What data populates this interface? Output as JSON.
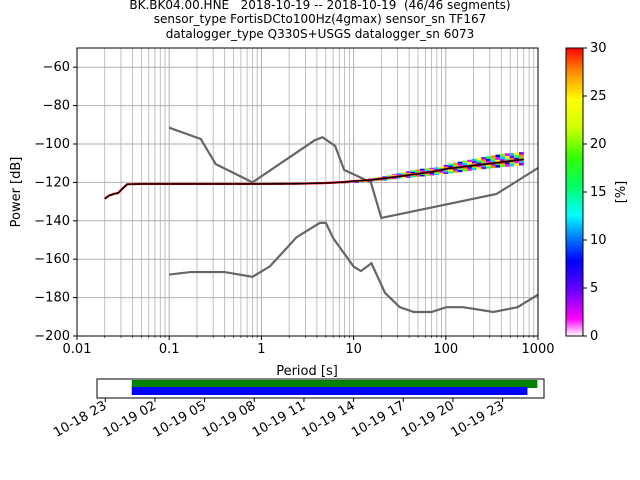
{
  "chart_data": [
    {
      "type": "heatmap",
      "title_lines": [
        "BK.BK04.00.HNE   2018-10-19 -- 2018-10-19  (46/46 segments)",
        "sensor_type FortisDCto100Hz(4gmax) sensor_sn TF167",
        "datalogger_type Q330S+USGS datalogger_sn 6073"
      ],
      "xlabel": "Period [s]",
      "ylabel": "Power [dB]",
      "xscale": "log",
      "xlim": [
        0.01,
        1000
      ],
      "ylim": [
        -200,
        -50
      ],
      "x_ticks": [
        {
          "value": 0.01,
          "label": "0.01"
        },
        {
          "value": 0.1,
          "label": "0.1"
        },
        {
          "value": 1,
          "label": "1"
        },
        {
          "value": 10,
          "label": "10"
        },
        {
          "value": 100,
          "label": "100"
        },
        {
          "value": 1000,
          "label": "1000"
        }
      ],
      "y_ticks": [
        {
          "value": -60,
          "label": "−60"
        },
        {
          "value": -80,
          "label": "−80"
        },
        {
          "value": -100,
          "label": "−100"
        },
        {
          "value": -120,
          "label": "−120"
        },
        {
          "value": -140,
          "label": "−140"
        },
        {
          "value": -160,
          "label": "−160"
        },
        {
          "value": -180,
          "label": "−180"
        },
        {
          "value": -200,
          "label": "−200"
        }
      ],
      "grid": true,
      "noise_model_high": {
        "color": "#666666",
        "x": [
          0.1,
          0.22,
          0.32,
          0.8,
          3.8,
          4.6,
          6.3,
          7.9,
          15.4,
          20,
          354.8,
          1000
        ],
        "y": [
          -91.5,
          -97.4,
          -110.5,
          -120,
          -98,
          -96.5,
          -101,
          -113.5,
          -120,
          -138.5,
          -126,
          -112.5
        ]
      },
      "noise_model_low": {
        "color": "#666666",
        "x": [
          0.1,
          0.17,
          0.4,
          0.8,
          1.24,
          2.4,
          4.3,
          5,
          6,
          10,
          12,
          15.6,
          21.9,
          31.6,
          45,
          70,
          101,
          154,
          328,
          600,
          1000
        ],
        "y": [
          -168,
          -166.7,
          -166.7,
          -169.2,
          -163.7,
          -148.6,
          -141.1,
          -141.1,
          -149,
          -163.8,
          -166.2,
          -162.1,
          -177.5,
          -185,
          -187.5,
          -187.5,
          -185,
          -185,
          -187.5,
          -185,
          -178.5
        ]
      },
      "mode_curve": {
        "color": "#000000",
        "x": [
          0.02,
          0.022,
          0.025,
          0.028,
          0.03,
          0.035,
          0.05,
          0.1,
          0.3,
          1,
          3,
          5,
          8,
          10,
          15,
          20,
          30,
          50,
          80,
          100,
          200,
          400,
          700
        ],
        "y": [
          -128.5,
          -127,
          -126,
          -125.5,
          -124,
          -121,
          -120.8,
          -120.8,
          -120.8,
          -120.8,
          -120.6,
          -120.3,
          -119.8,
          -119.3,
          -118.8,
          -118,
          -117,
          -115.5,
          -114,
          -113,
          -111.2,
          -109.5,
          -108
        ]
      },
      "psd_band": {
        "x": [
          0.6,
          1,
          2,
          5,
          10,
          20,
          30,
          50,
          80,
          100,
          200,
          400,
          700
        ],
        "low": [
          -121,
          -121,
          -121,
          -120.5,
          -120,
          -119,
          -118,
          -117,
          -116,
          -115.5,
          -113.5,
          -112,
          -111
        ],
        "high": [
          -120.5,
          -120.5,
          -120.5,
          -120,
          -119,
          -117,
          -115,
          -113,
          -112,
          -110.5,
          -107.5,
          -105,
          -104
        ]
      },
      "colorbar": {
        "label": "[%]",
        "range": [
          0,
          30
        ],
        "ticks": [
          {
            "value": 0,
            "label": "0"
          },
          {
            "value": 5,
            "label": "5"
          },
          {
            "value": 10,
            "label": "10"
          },
          {
            "value": 15,
            "label": "15"
          },
          {
            "value": 20,
            "label": "20"
          },
          {
            "value": 25,
            "label": "25"
          },
          {
            "value": 30,
            "label": "30"
          }
        ]
      }
    },
    {
      "type": "bar",
      "orientation": "horizontal",
      "time_range_hours": [
        -1.5,
        25.5
      ],
      "tick_hours": [
        {
          "value": -1,
          "label": "10-18 23"
        },
        {
          "value": 2,
          "label": "10-19 02"
        },
        {
          "value": 5,
          "label": "10-19 05"
        },
        {
          "value": 8,
          "label": "10-19 08"
        },
        {
          "value": 11,
          "label": "10-19 11"
        },
        {
          "value": 14,
          "label": "10-19 14"
        },
        {
          "value": 17,
          "label": "10-19 17"
        },
        {
          "value": 20,
          "label": "10-19 20"
        },
        {
          "value": 23,
          "label": "10-19 23"
        }
      ],
      "bars": [
        {
          "color": "#008000",
          "start": 0.6,
          "end": 25.1
        },
        {
          "color": "#0000ff",
          "start": 0.6,
          "end": 24.5
        }
      ]
    }
  ]
}
